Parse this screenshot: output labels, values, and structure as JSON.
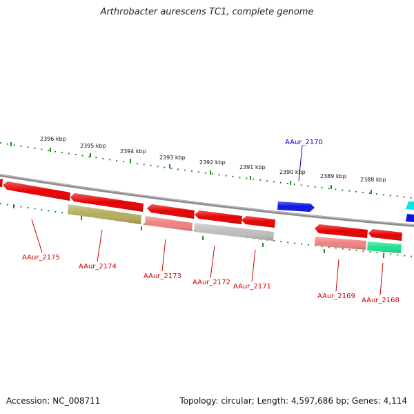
{
  "title": "Arthrobacter aurescens TC1, complete genome",
  "footer": {
    "accession": "Accession: NC_008711",
    "summary": "Topology: circular; Length: 4,597,686 bp; Genes: 4,114"
  },
  "colors": {
    "backbone": "#8c8c8c",
    "tick_mark": "#1e8c1e",
    "forward_label": "#0000cc",
    "reverse_label": "#cc0000"
  },
  "ruler": {
    "labels": [
      "2396 kbp",
      "2395 kbp",
      "2394 kbp",
      "2393 kbp",
      "2392 kbp",
      "2391 kbp",
      "2390 kbp",
      "2389 kbp",
      "2388 kbp"
    ]
  },
  "genes": [
    {
      "label": "AAur_2175",
      "strand": "reverse",
      "color": "#e60000"
    },
    {
      "label": "AAur_2174",
      "strand": "reverse",
      "color": "#b4ac5c"
    },
    {
      "label": "AAur_2173",
      "strand": "reverse",
      "color": "#f08080"
    },
    {
      "label": "AAur_2172",
      "strand": "reverse",
      "color": "#bdbdbd"
    },
    {
      "label": "AAur_2171",
      "strand": "reverse",
      "color": "#e60000"
    },
    {
      "label": "AAur_2170",
      "strand": "forward",
      "color": "#0a14e6"
    },
    {
      "label": "AAur_2169",
      "strand": "reverse",
      "color": "#f08080"
    },
    {
      "label": "AAur_2168",
      "strand": "reverse",
      "color": "#20e090"
    }
  ]
}
